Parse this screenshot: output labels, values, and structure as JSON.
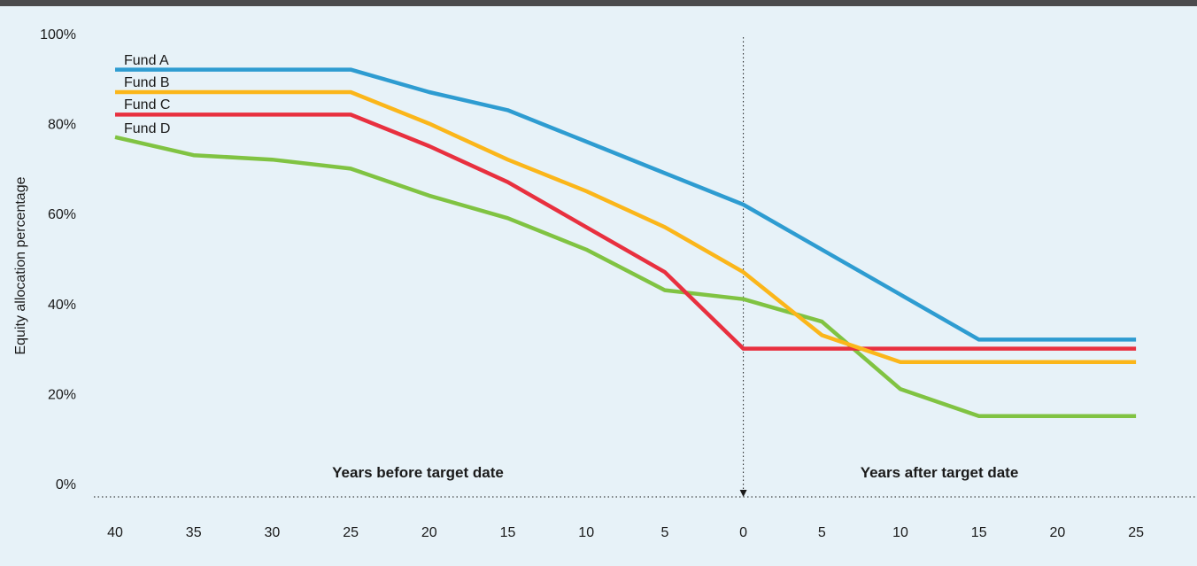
{
  "colors": {
    "background": "#e7f2f8",
    "top_bar": "#4b4b4d",
    "fund_a": "#2e9cd1",
    "fund_b": "#fbb61a",
    "fund_c": "#e8303f",
    "fund_d": "#80c342"
  },
  "chart_data": {
    "type": "line",
    "title": "",
    "xlabel": "",
    "ylabel": "Equity allocation percentage",
    "x_tick_labels": [
      "40",
      "35",
      "30",
      "25",
      "20",
      "15",
      "10",
      "5",
      "0",
      "5",
      "10",
      "15",
      "20",
      "25"
    ],
    "y_tick_labels": [
      "0%",
      "20%",
      "40%",
      "60%",
      "80%",
      "100%"
    ],
    "ylim": [
      0,
      100
    ],
    "grid": false,
    "legend_placement": "top-left",
    "section_labels": {
      "before": "Years before target date",
      "after": "Years after target date"
    },
    "target_marker_x": 0,
    "series": [
      {
        "name": "Fund A",
        "color": "#2e9cd1",
        "points": [
          [
            -40,
            92
          ],
          [
            -35,
            92
          ],
          [
            -30,
            92
          ],
          [
            -25,
            92
          ],
          [
            -20,
            87
          ],
          [
            -15,
            83
          ],
          [
            -10,
            76
          ],
          [
            -5,
            69
          ],
          [
            0,
            62
          ],
          [
            5,
            52
          ],
          [
            10,
            42
          ],
          [
            15,
            32
          ],
          [
            20,
            32
          ],
          [
            25,
            32
          ]
        ]
      },
      {
        "name": "Fund B",
        "color": "#fbb61a",
        "points": [
          [
            -40,
            87
          ],
          [
            -35,
            87
          ],
          [
            -30,
            87
          ],
          [
            -25,
            87
          ],
          [
            -20,
            80
          ],
          [
            -15,
            72
          ],
          [
            -10,
            65
          ],
          [
            -5,
            57
          ],
          [
            0,
            47
          ],
          [
            5,
            33
          ],
          [
            10,
            27
          ],
          [
            15,
            27
          ],
          [
            20,
            27
          ],
          [
            25,
            27
          ]
        ]
      },
      {
        "name": "Fund C",
        "color": "#e8303f",
        "points": [
          [
            -40,
            82
          ],
          [
            -35,
            82
          ],
          [
            -30,
            82
          ],
          [
            -25,
            82
          ],
          [
            -20,
            75
          ],
          [
            -15,
            67
          ],
          [
            -10,
            57
          ],
          [
            -5,
            47
          ],
          [
            0,
            30
          ],
          [
            5,
            30
          ],
          [
            10,
            30
          ],
          [
            15,
            30
          ],
          [
            20,
            30
          ],
          [
            25,
            30
          ]
        ]
      },
      {
        "name": "Fund D",
        "color": "#80c342",
        "points": [
          [
            -40,
            77
          ],
          [
            -35,
            73
          ],
          [
            -30,
            72
          ],
          [
            -25,
            70
          ],
          [
            -20,
            64
          ],
          [
            -15,
            59
          ],
          [
            -10,
            52
          ],
          [
            -5,
            43
          ],
          [
            0,
            41
          ],
          [
            5,
            36
          ],
          [
            10,
            21
          ],
          [
            15,
            15
          ],
          [
            20,
            15
          ],
          [
            25,
            15
          ]
        ]
      }
    ]
  }
}
